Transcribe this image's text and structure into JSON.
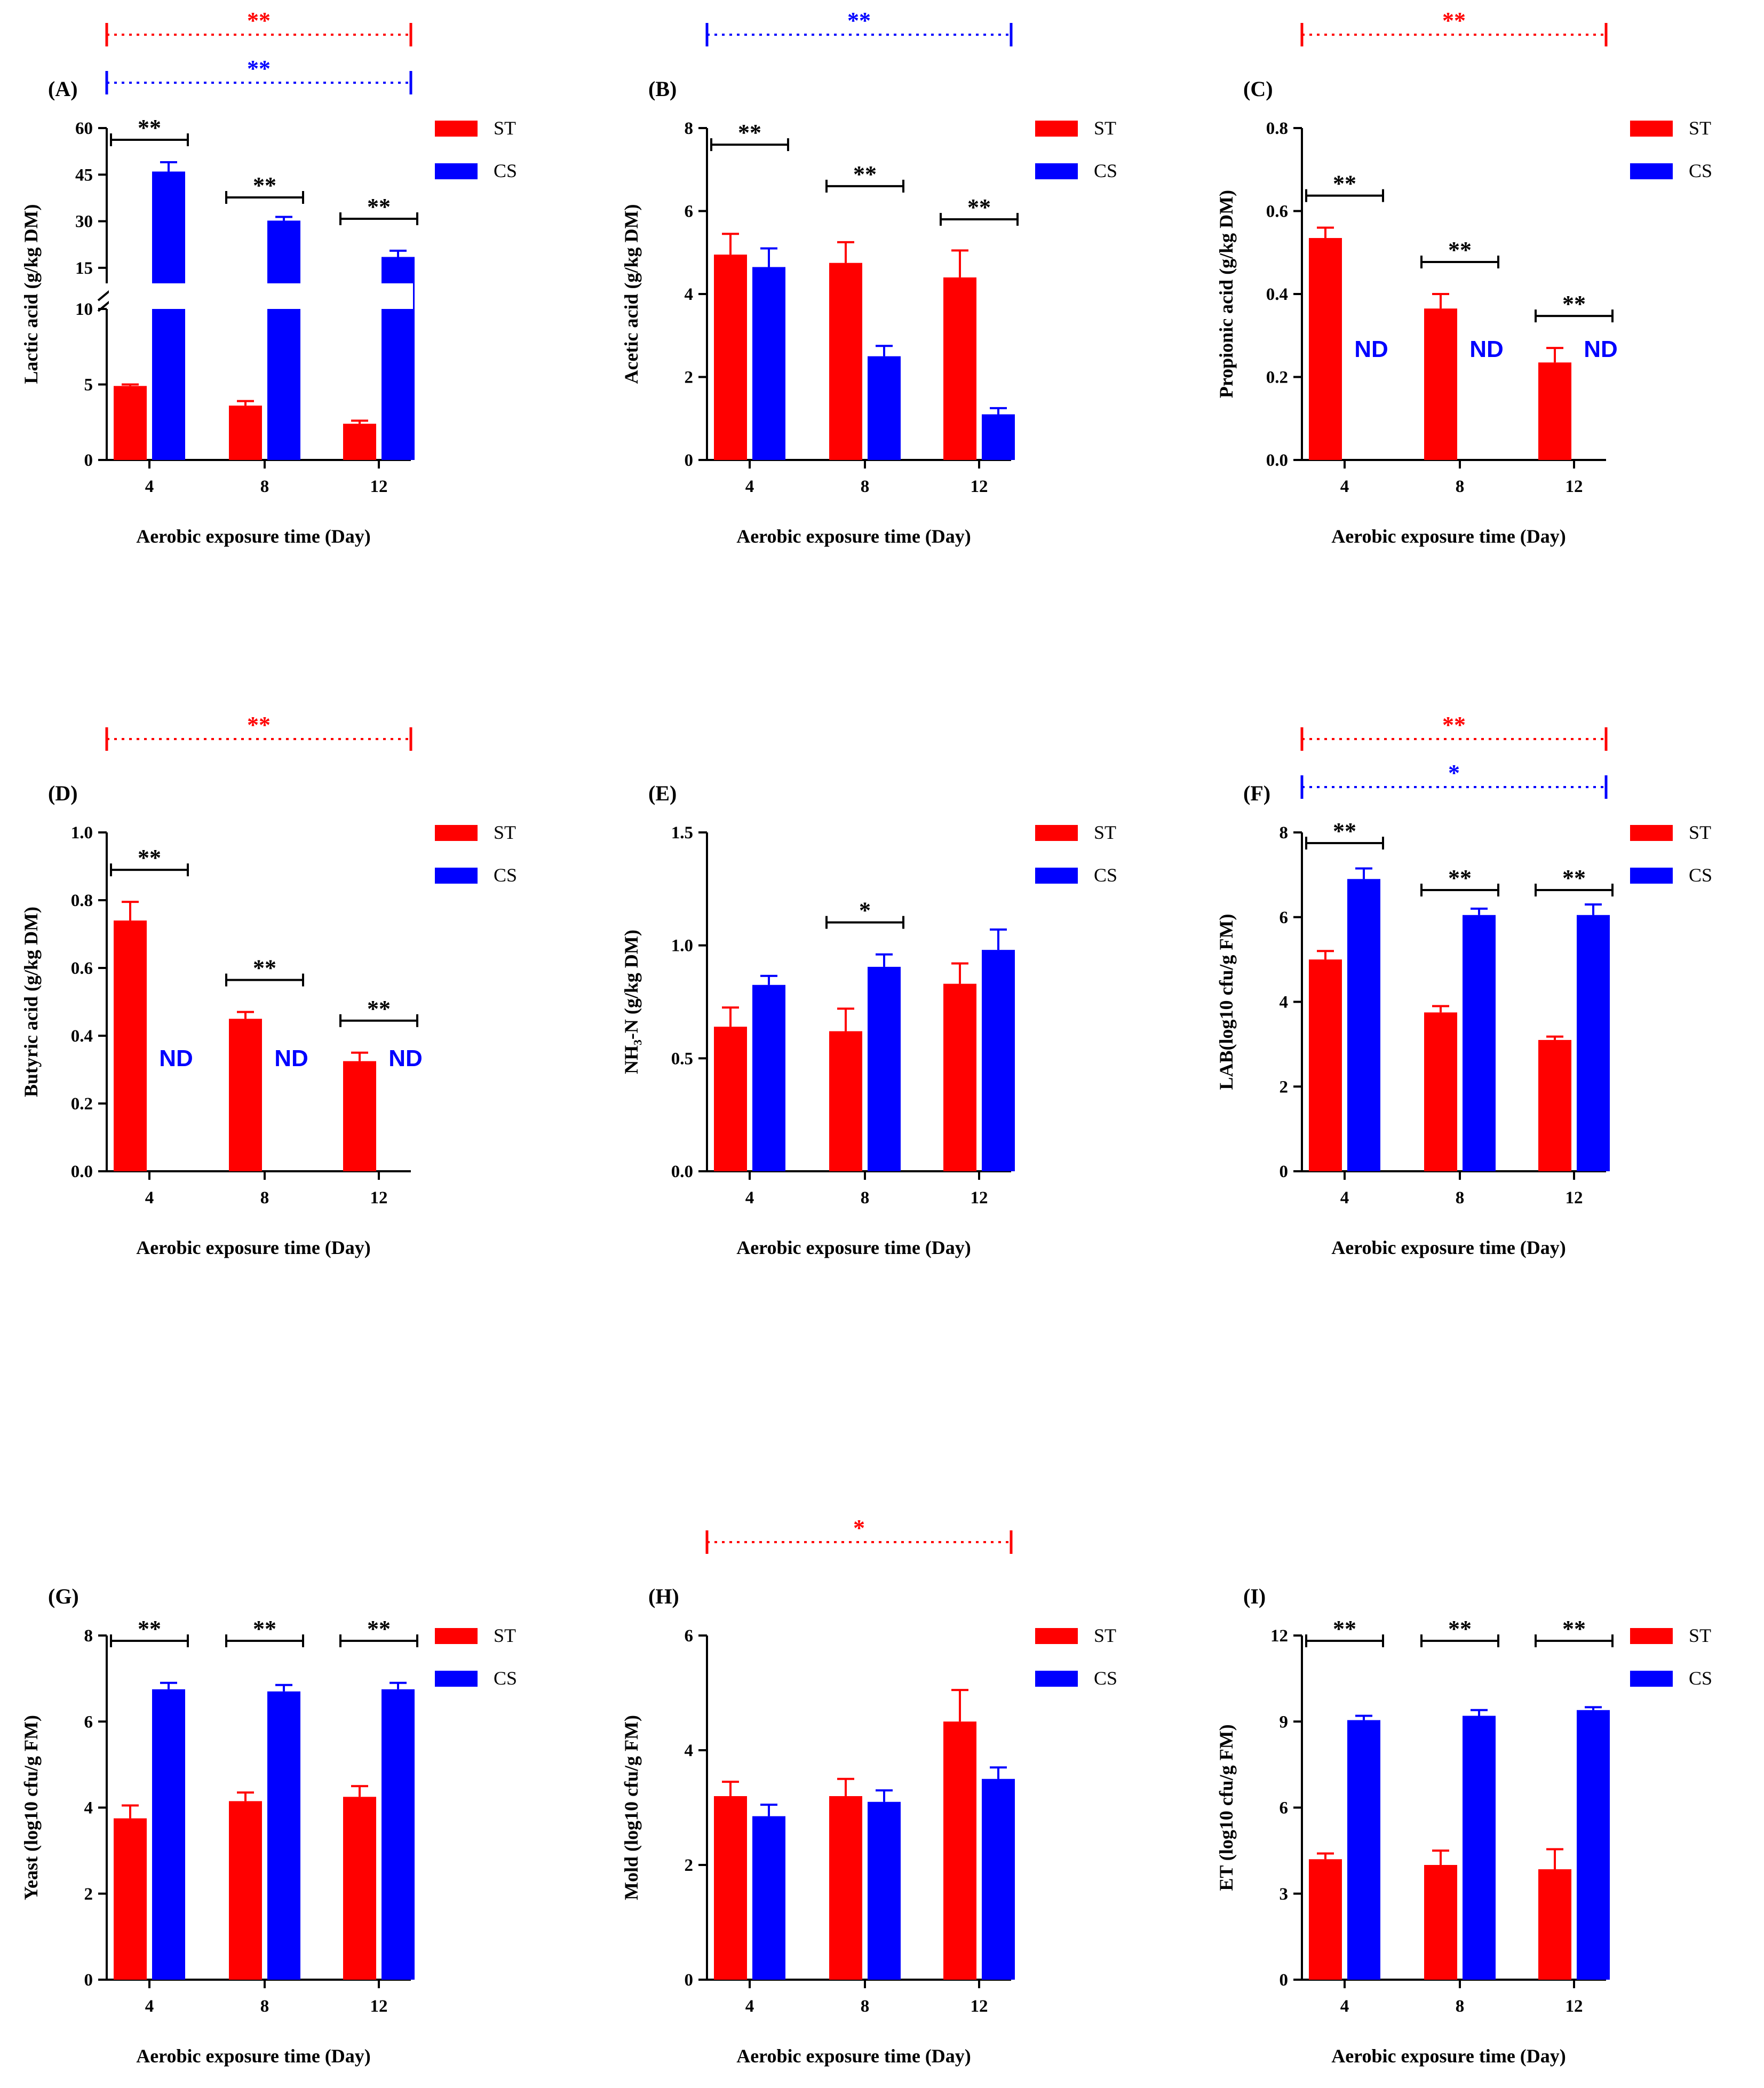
{
  "colors": {
    "ST": "#ff0000",
    "CS": "#0000ff",
    "ns": "#000000"
  },
  "legend": [
    "ST",
    "CS"
  ],
  "chart_data": [
    {
      "id": "A",
      "panel": "(A)",
      "type": "bar",
      "xlabel": "Aerobic exposure time (Day)",
      "ylabel": "Lactic acid (g/kg DM)",
      "categories": [
        "4",
        "8",
        "12"
      ],
      "series": [
        {
          "name": "ST",
          "values": [
            4.9,
            3.6,
            2.4
          ],
          "errors": [
            0.1,
            0.3,
            0.2
          ]
        },
        {
          "name": "CS",
          "values": [
            46,
            30.2,
            18.5
          ],
          "errors": [
            3,
            1.2,
            2
          ]
        }
      ],
      "axis_break": {
        "lower": [
          0,
          10
        ],
        "upper": [
          10,
          60
        ]
      },
      "yticks": [
        "0",
        "5",
        "10",
        "15",
        "30",
        "45",
        "60"
      ],
      "pair_sig": [
        "**",
        "**",
        "**"
      ],
      "group_sig": [
        {
          "series": "ST",
          "label": "**"
        },
        {
          "series": "CS",
          "label": "**"
        }
      ]
    },
    {
      "id": "B",
      "panel": "(B)",
      "type": "bar",
      "xlabel": "Aerobic exposure time (Day)",
      "ylabel": "Acetic acid (g/kg DM)",
      "categories": [
        "4",
        "8",
        "12"
      ],
      "series": [
        {
          "name": "ST",
          "values": [
            4.95,
            4.75,
            4.4
          ],
          "errors": [
            0.5,
            0.5,
            0.65
          ]
        },
        {
          "name": "CS",
          "values": [
            4.65,
            2.5,
            1.1
          ],
          "errors": [
            0.45,
            0.25,
            0.15
          ]
        }
      ],
      "ylim": [
        0,
        8
      ],
      "yticks": [
        "0",
        "2",
        "4",
        "6",
        "8"
      ],
      "pair_sig": [
        "**",
        "**",
        "**"
      ],
      "group_sig": [
        {
          "series": "CS",
          "label": "**"
        }
      ]
    },
    {
      "id": "C",
      "panel": "(C)",
      "type": "bar",
      "xlabel": "Aerobic exposure time (Day)",
      "ylabel": "Propionic acid (g/kg DM)",
      "categories": [
        "4",
        "8",
        "12"
      ],
      "series": [
        {
          "name": "ST",
          "values": [
            0.535,
            0.365,
            0.235
          ],
          "errors": [
            0.025,
            0.035,
            0.035
          ]
        },
        {
          "name": "CS",
          "values": [
            null,
            null,
            null
          ],
          "errors": [
            null,
            null,
            null
          ]
        }
      ],
      "ylim": [
        0,
        0.8
      ],
      "yticks": [
        "0.0",
        "0.2",
        "0.4",
        "0.6",
        "0.8"
      ],
      "nd_label": "ND",
      "pair_sig": [
        "**",
        "**",
        "**"
      ],
      "group_sig": [
        {
          "series": "ST",
          "label": "**"
        }
      ]
    },
    {
      "id": "D",
      "panel": "(D)",
      "type": "bar",
      "xlabel": "Aerobic exposure time (Day)",
      "ylabel": "Butyric acid (g/kg DM)",
      "categories": [
        "4",
        "8",
        "12"
      ],
      "series": [
        {
          "name": "ST",
          "values": [
            0.74,
            0.45,
            0.325
          ],
          "errors": [
            0.055,
            0.02,
            0.025
          ]
        },
        {
          "name": "CS",
          "values": [
            null,
            null,
            null
          ],
          "errors": [
            null,
            null,
            null
          ]
        }
      ],
      "ylim": [
        0,
        1.0
      ],
      "yticks": [
        "0.0",
        "0.2",
        "0.4",
        "0.6",
        "0.8",
        "1.0"
      ],
      "nd_label": "ND",
      "pair_sig": [
        "**",
        "**",
        "**"
      ],
      "group_sig": [
        {
          "series": "ST",
          "label": "**"
        }
      ]
    },
    {
      "id": "E",
      "panel": "(E)",
      "type": "bar",
      "xlabel": "Aerobic exposure time (Day)",
      "ylabel": "NH₃-N (g/kg DM)",
      "categories": [
        "4",
        "8",
        "12"
      ],
      "series": [
        {
          "name": "ST",
          "values": [
            0.64,
            0.62,
            0.83
          ],
          "errors": [
            0.085,
            0.1,
            0.09
          ]
        },
        {
          "name": "CS",
          "values": [
            0.825,
            0.905,
            0.98
          ],
          "errors": [
            0.04,
            0.055,
            0.09
          ]
        }
      ],
      "ylim": [
        0,
        1.5
      ],
      "yticks": [
        "0.0",
        "0.5",
        "1.0",
        "1.5"
      ],
      "pair_sig": [
        null,
        "*",
        null
      ],
      "group_sig": []
    },
    {
      "id": "F",
      "panel": "(F)",
      "type": "bar",
      "xlabel": "Aerobic exposure time (Day)",
      "ylabel": "LAB(log10 cfu/g FM)",
      "categories": [
        "4",
        "8",
        "12"
      ],
      "series": [
        {
          "name": "ST",
          "values": [
            5.0,
            3.75,
            3.1
          ],
          "errors": [
            0.2,
            0.15,
            0.08
          ]
        },
        {
          "name": "CS",
          "values": [
            6.9,
            6.05,
            6.05
          ],
          "errors": [
            0.25,
            0.15,
            0.25
          ]
        }
      ],
      "ylim": [
        0,
        8
      ],
      "yticks": [
        "0",
        "2",
        "4",
        "6",
        "8"
      ],
      "pair_sig": [
        "**",
        "**",
        "**"
      ],
      "group_sig": [
        {
          "series": "ST",
          "label": "**"
        },
        {
          "series": "CS",
          "label": "*"
        }
      ]
    },
    {
      "id": "G",
      "panel": "(G)",
      "type": "bar",
      "xlabel": "Aerobic exposure time (Day)",
      "ylabel": "Yeast (log10 cfu/g FM)",
      "categories": [
        "4",
        "8",
        "12"
      ],
      "series": [
        {
          "name": "ST",
          "values": [
            3.75,
            4.15,
            4.25
          ],
          "errors": [
            0.3,
            0.2,
            0.25
          ]
        },
        {
          "name": "CS",
          "values": [
            6.75,
            6.7,
            6.75
          ],
          "errors": [
            0.15,
            0.15,
            0.15
          ]
        }
      ],
      "ylim": [
        0,
        8
      ],
      "yticks": [
        "0",
        "2",
        "4",
        "6",
        "8"
      ],
      "pair_sig": [
        "**",
        "**",
        "**"
      ],
      "group_sig": []
    },
    {
      "id": "H",
      "panel": "(H)",
      "type": "bar",
      "xlabel": "Aerobic exposure time (Day)",
      "ylabel": "Mold (log10 cfu/g FM)",
      "categories": [
        "4",
        "8",
        "12"
      ],
      "series": [
        {
          "name": "ST",
          "values": [
            3.2,
            3.2,
            4.5
          ],
          "errors": [
            0.25,
            0.3,
            0.55
          ]
        },
        {
          "name": "CS",
          "values": [
            2.85,
            3.1,
            3.5
          ],
          "errors": [
            0.2,
            0.2,
            0.2
          ]
        }
      ],
      "ylim": [
        0,
        6
      ],
      "yticks": [
        "0",
        "2",
        "4",
        "6"
      ],
      "pair_sig": [
        null,
        null,
        null
      ],
      "group_sig": [
        {
          "series": "ST",
          "label": "*"
        }
      ]
    },
    {
      "id": "I",
      "panel": "(I)",
      "type": "bar",
      "xlabel": "Aerobic exposure time (Day)",
      "ylabel": "ET (log10 cfu/g FM)",
      "categories": [
        "4",
        "8",
        "12"
      ],
      "series": [
        {
          "name": "ST",
          "values": [
            4.2,
            4.0,
            3.85
          ],
          "errors": [
            0.2,
            0.5,
            0.7
          ]
        },
        {
          "name": "CS",
          "values": [
            9.05,
            9.2,
            9.4
          ],
          "errors": [
            0.15,
            0.2,
            0.1
          ]
        }
      ],
      "ylim": [
        0,
        12
      ],
      "yticks": [
        "0",
        "3",
        "6",
        "9",
        "12"
      ],
      "pair_sig": [
        "**",
        "**",
        "**"
      ],
      "group_sig": []
    }
  ]
}
